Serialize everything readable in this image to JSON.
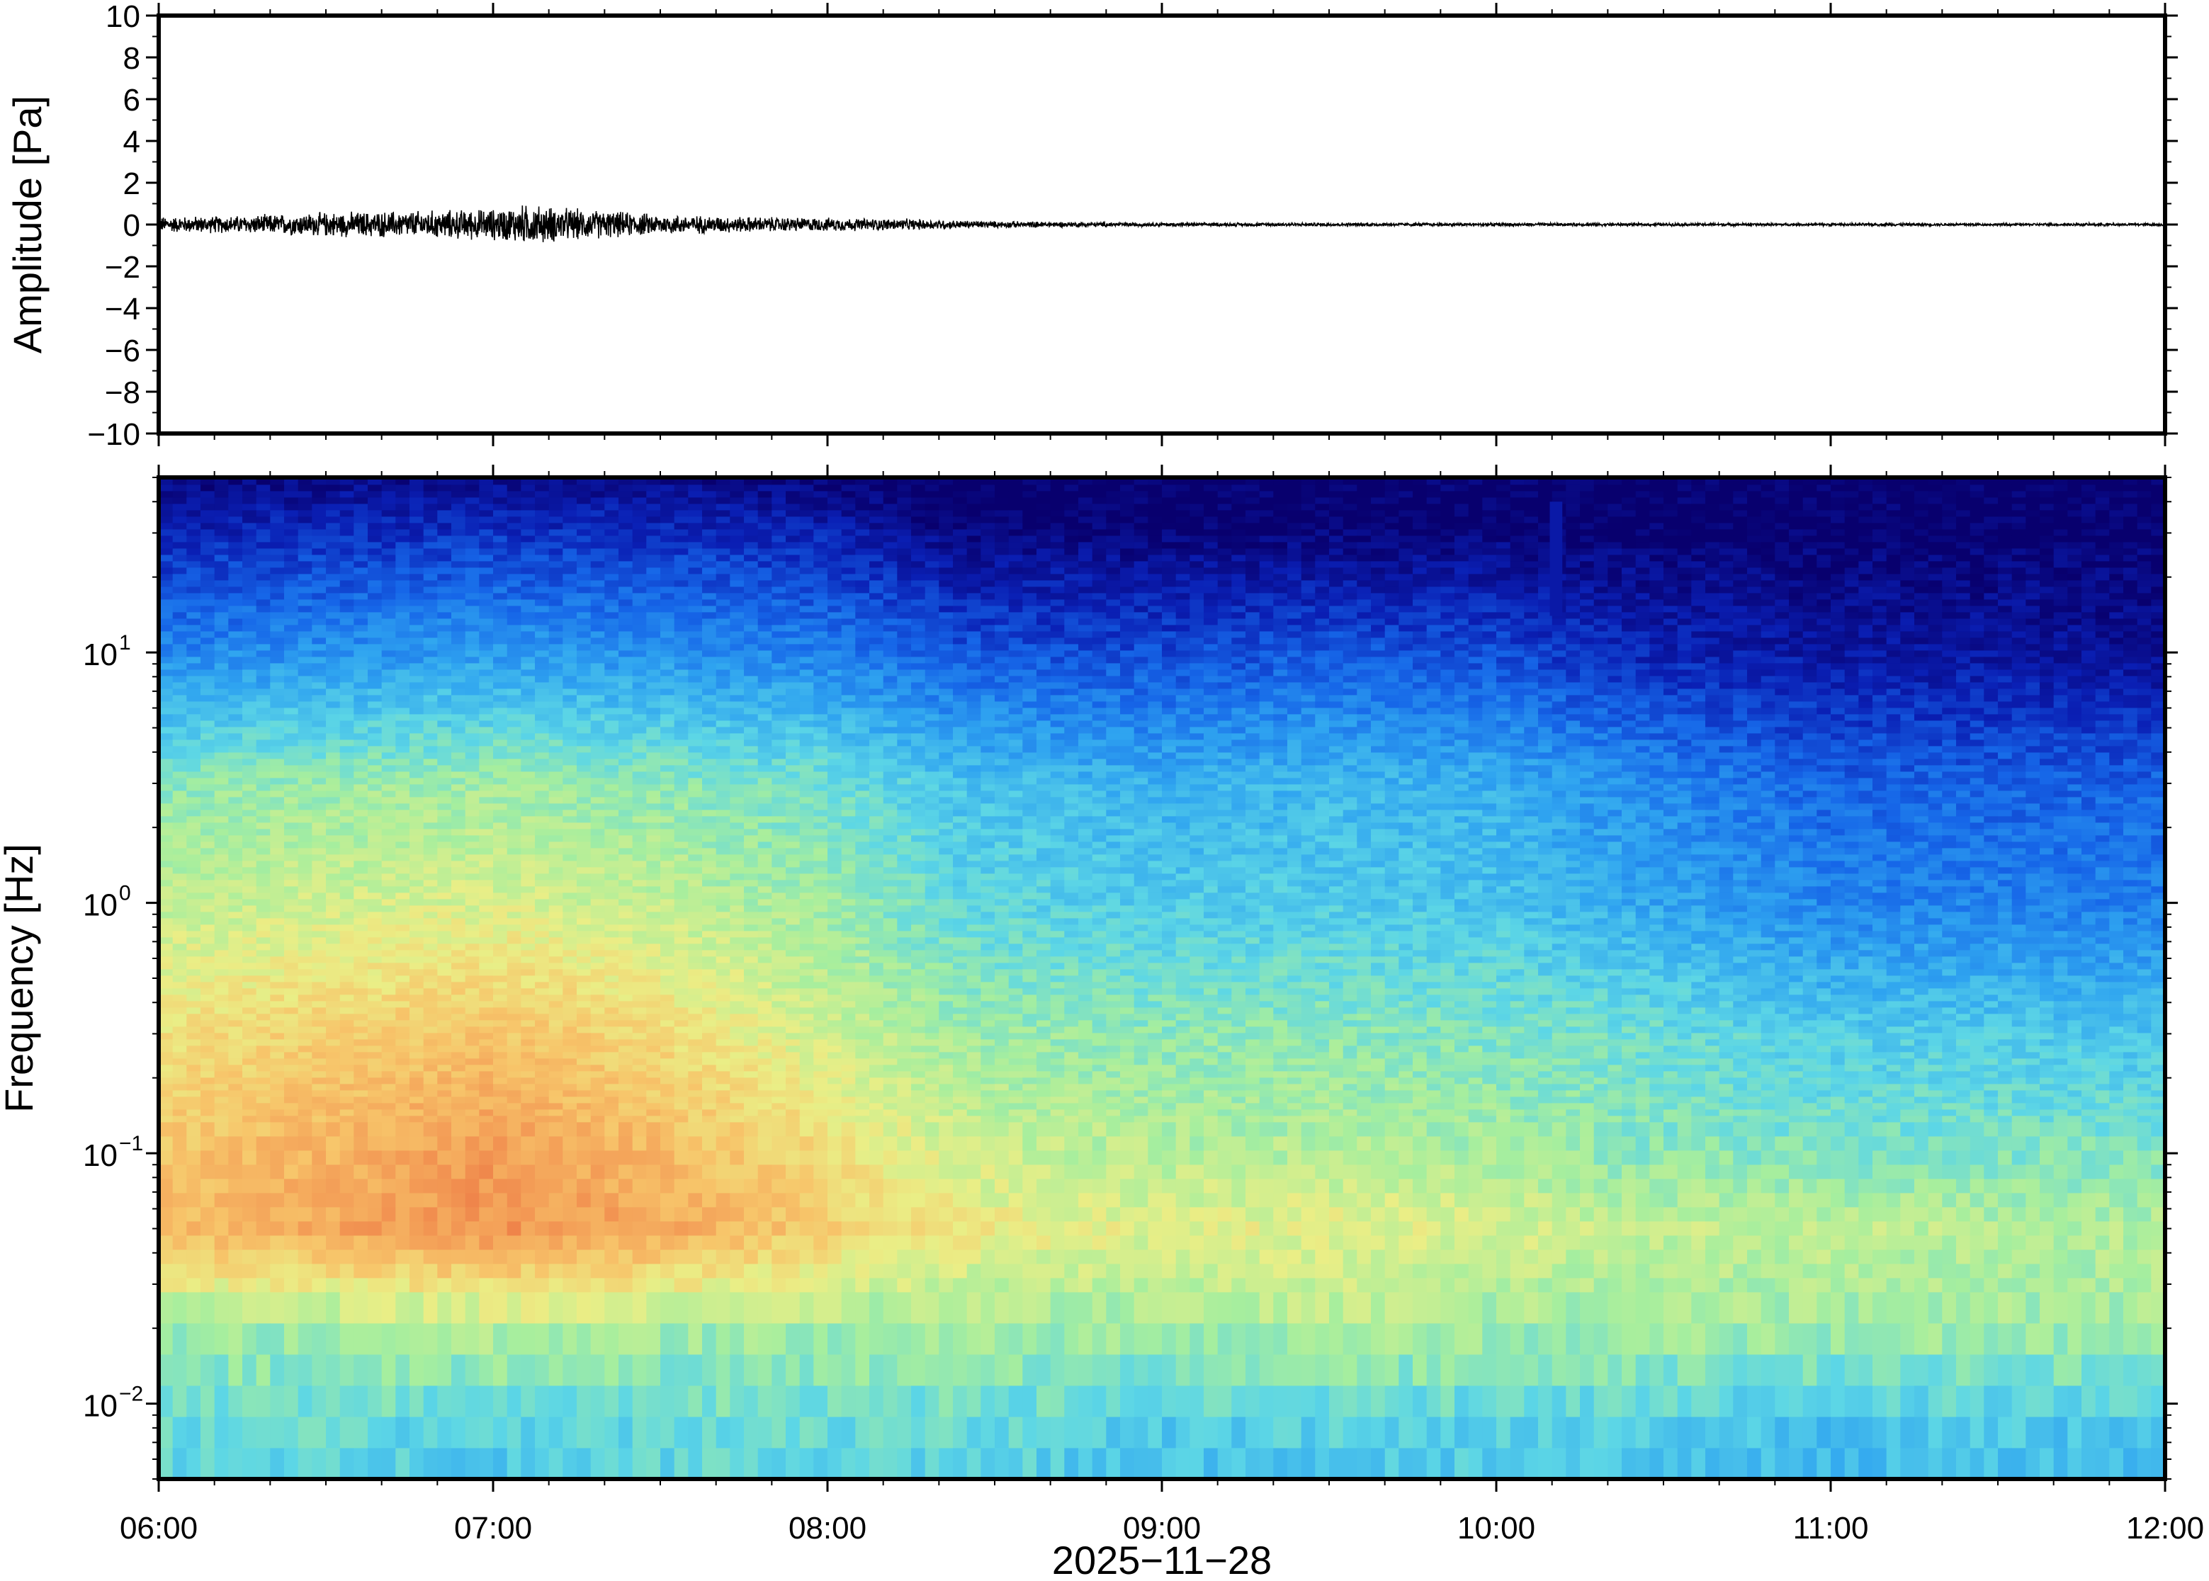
{
  "chart_data": [
    {
      "type": "line",
      "name": "waveform",
      "ylabel": "Amplitude [Pa]",
      "xlabel": "",
      "ylim": [
        -10,
        10
      ],
      "yticks": [
        "10",
        "8",
        "6",
        "4",
        "2",
        "0",
        "−2",
        "−4",
        "−6",
        "−8",
        "−10"
      ],
      "ytick_values": [
        10,
        8,
        6,
        4,
        2,
        0,
        -2,
        -4,
        -6,
        -8,
        -10
      ],
      "xlim": [
        "06:00",
        "12:00"
      ],
      "envelope": {
        "x_hours": [
          6.0,
          6.25,
          6.5,
          6.75,
          7.0,
          7.1,
          7.25,
          7.5,
          7.75,
          8.0,
          8.25,
          8.5,
          9.0,
          10.0,
          11.0,
          12.0
        ],
        "amplitude_pa": [
          0.35,
          0.4,
          0.55,
          0.6,
          0.7,
          0.9,
          0.7,
          0.45,
          0.35,
          0.3,
          0.25,
          0.15,
          0.08,
          0.07,
          0.06,
          0.06
        ]
      },
      "line_color": "#000000"
    },
    {
      "type": "heatmap",
      "name": "spectrogram",
      "ylabel": "Frequency [Hz]",
      "xlabel": "2025−11−28",
      "yscale": "log",
      "ylim": [
        0.005,
        50
      ],
      "ytick_values": [
        10,
        1,
        0.1,
        0.01
      ],
      "yticks": [
        {
          "base": "10",
          "exp": "1"
        },
        {
          "base": "10",
          "exp": "0"
        },
        {
          "base": "10",
          "exp": "−1"
        },
        {
          "base": "10",
          "exp": "−2"
        }
      ],
      "xticks": [
        "06:00",
        "07:00",
        "08:00",
        "09:00",
        "10:00",
        "11:00",
        "12:00"
      ],
      "xlim": [
        "06:00",
        "12:00"
      ],
      "colormap": [
        "#08006e",
        "#0a1fb4",
        "#1666e8",
        "#2fa4f0",
        "#5cd6e6",
        "#a6ee9e",
        "#eaee86",
        "#f7c56a",
        "#f39a55",
        "#e8623a"
      ],
      "time_hours": [
        6.0,
        6.5,
        7.0,
        7.5,
        8.0,
        8.4,
        9.0,
        9.5,
        10.0,
        10.4,
        11.0,
        11.5,
        12.0
      ],
      "bands_hz": [
        0.007,
        0.02,
        0.05,
        0.1,
        0.3,
        1,
        3,
        10,
        25
      ],
      "relative_power": [
        [
          0.45,
          0.55,
          0.8,
          0.78,
          0.7,
          0.6,
          0.52,
          0.28,
          0.14
        ],
        [
          0.45,
          0.55,
          0.85,
          0.82,
          0.75,
          0.62,
          0.54,
          0.3,
          0.16
        ],
        [
          0.42,
          0.58,
          0.9,
          0.88,
          0.78,
          0.64,
          0.55,
          0.32,
          0.17
        ],
        [
          0.45,
          0.55,
          0.85,
          0.8,
          0.72,
          0.6,
          0.52,
          0.3,
          0.16
        ],
        [
          0.45,
          0.55,
          0.75,
          0.72,
          0.62,
          0.55,
          0.48,
          0.27,
          0.14
        ],
        [
          0.45,
          0.55,
          0.68,
          0.62,
          0.55,
          0.45,
          0.4,
          0.2,
          0.06
        ],
        [
          0.4,
          0.55,
          0.65,
          0.58,
          0.52,
          0.42,
          0.36,
          0.18,
          0.05
        ],
        [
          0.42,
          0.58,
          0.66,
          0.58,
          0.52,
          0.42,
          0.38,
          0.2,
          0.05
        ],
        [
          0.42,
          0.55,
          0.64,
          0.56,
          0.5,
          0.4,
          0.36,
          0.18,
          0.05
        ],
        [
          0.4,
          0.55,
          0.6,
          0.52,
          0.48,
          0.35,
          0.3,
          0.12,
          0.03
        ],
        [
          0.38,
          0.55,
          0.6,
          0.5,
          0.42,
          0.28,
          0.22,
          0.08,
          0.02
        ],
        [
          0.4,
          0.55,
          0.58,
          0.5,
          0.42,
          0.27,
          0.22,
          0.08,
          0.02
        ],
        [
          0.38,
          0.55,
          0.58,
          0.5,
          0.4,
          0.27,
          0.22,
          0.05,
          0.02
        ]
      ]
    }
  ]
}
